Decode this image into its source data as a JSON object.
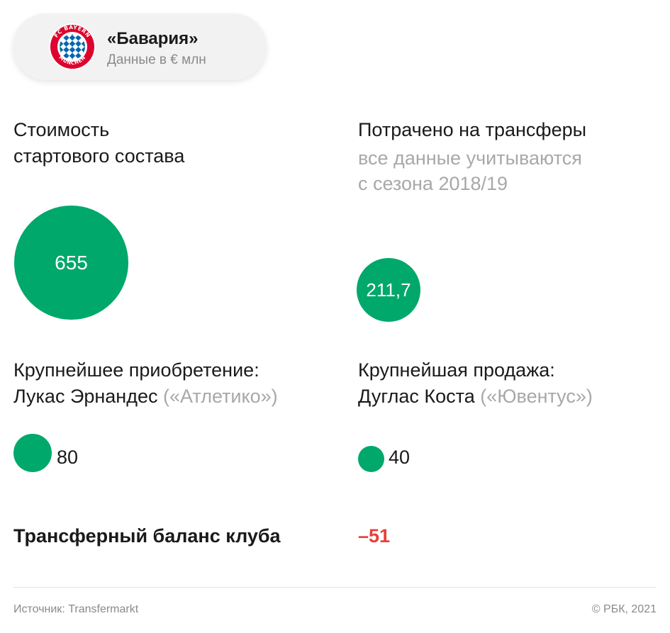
{
  "header": {
    "club_name": "«Бавария»",
    "subtitle": "Данные в € млн",
    "logo_text": "FC BAYERN MÜNCHEN",
    "logo_colors": {
      "red": "#dc052d",
      "blue": "#0066b2",
      "white": "#ffffff"
    }
  },
  "squad_value": {
    "title_line1": "Стоимость",
    "title_line2": "стартового состава",
    "value_label": "655"
  },
  "transfers_spent": {
    "title": "Потрачено на трансферы",
    "note_line1": "все данные учитываются",
    "note_line2": "с сезона 2018/19",
    "value_label": "211,7"
  },
  "biggest_purchase": {
    "title": "Крупнейшее приобретение:",
    "player": "Лукас Эрнандес",
    "club": "(«Атлетико»)",
    "value_label": "80"
  },
  "biggest_sale": {
    "title": "Крупнейшая продажа:",
    "player": "Дуглас Коста",
    "club": "(«Ювентус»)",
    "value_label": "40"
  },
  "balance": {
    "label": "Трансферный баланс клуба",
    "value": "–51"
  },
  "footer": {
    "source": "Источник: Transfermarkt",
    "copyright": "© РБК, 2021"
  },
  "colors": {
    "bubble": "#00a86b",
    "negative": "#e8403a",
    "muted_text": "#a8a8a8"
  },
  "chart_data": {
    "type": "bubble",
    "unit": "€ млн",
    "series": [
      {
        "category": "Стоимость стартового состава",
        "value": 655
      },
      {
        "category": "Потрачено на трансферы",
        "value": 211.7
      },
      {
        "category": "Крупнейшее приобретение",
        "value": 80
      },
      {
        "category": "Крупнейшая продажа",
        "value": 40
      }
    ],
    "balance": -51
  }
}
